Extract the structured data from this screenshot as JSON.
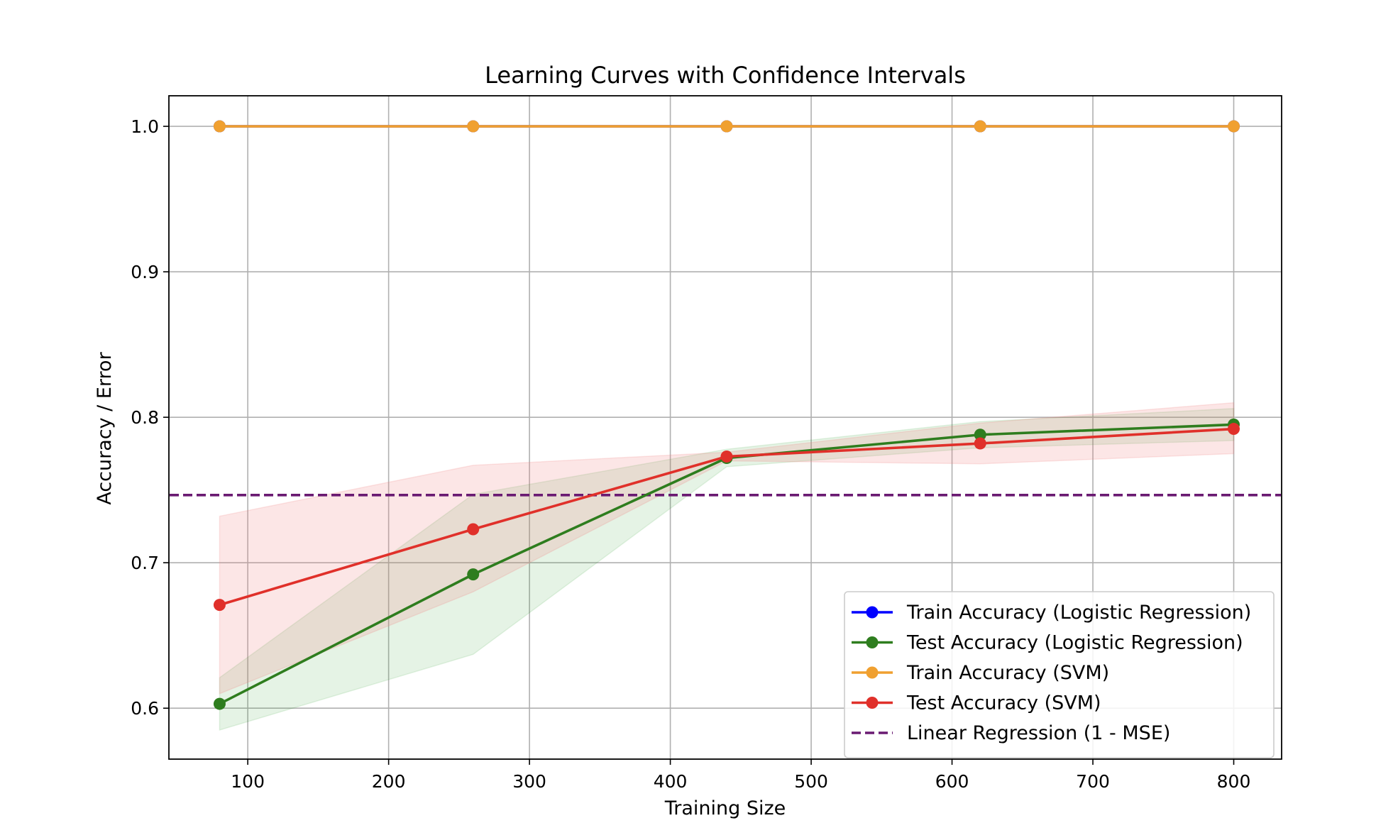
{
  "chart_data": {
    "type": "line",
    "title": "Learning Curves with Confidence Intervals",
    "xlabel": "Training Size",
    "ylabel": "Accuracy / Error",
    "xlim": [
      44,
      834
    ],
    "ylim": [
      0.565,
      1.021
    ],
    "xticks": [
      100,
      200,
      300,
      400,
      500,
      600,
      700,
      800
    ],
    "yticks": [
      0.6,
      0.7,
      0.8,
      0.9,
      1.0
    ],
    "xtick_labels": [
      "100",
      "200",
      "300",
      "400",
      "500",
      "600",
      "700",
      "800"
    ],
    "ytick_labels": [
      "0.6",
      "0.7",
      "0.8",
      "0.9",
      "1.0"
    ],
    "grid": true,
    "legend_position": "lower-right",
    "x": [
      80,
      260,
      440,
      620,
      800
    ],
    "series": [
      {
        "name": "Train Accuracy (Logistic Regression)",
        "color": "#0000ff",
        "values": [
          1.0,
          1.0,
          1.0,
          1.0,
          1.0
        ],
        "marker": "circle",
        "line_style": "solid",
        "band": null
      },
      {
        "name": "Test Accuracy (Logistic Regression)",
        "color": "#2e7d1e",
        "values": [
          0.603,
          0.692,
          0.772,
          0.788,
          0.795
        ],
        "marker": "circle",
        "line_style": "solid",
        "band": {
          "lower": [
            0.585,
            0.637,
            0.766,
            0.779,
            0.784
          ],
          "upper": [
            0.621,
            0.747,
            0.778,
            0.797,
            0.806
          ],
          "color": "#2ca02c",
          "opacity": 0.12
        }
      },
      {
        "name": "Train Accuracy (SVM)",
        "color": "#f0a030",
        "values": [
          1.0,
          1.0,
          1.0,
          1.0,
          1.0
        ],
        "marker": "circle",
        "line_style": "solid",
        "band": null
      },
      {
        "name": "Test Accuracy (SVM)",
        "color": "#e0302a",
        "values": [
          0.671,
          0.723,
          0.773,
          0.782,
          0.792
        ],
        "marker": "circle",
        "line_style": "solid",
        "band": {
          "lower": [
            0.61,
            0.68,
            0.77,
            0.768,
            0.775
          ],
          "upper": [
            0.732,
            0.767,
            0.776,
            0.796,
            0.81
          ],
          "color": "#f08080",
          "opacity": 0.2
        }
      }
    ],
    "hlines": [
      {
        "name": "Linear Regression (1 - MSE)",
        "color": "#6a1a72",
        "y": 0.7465,
        "line_style": "dashed"
      }
    ]
  }
}
